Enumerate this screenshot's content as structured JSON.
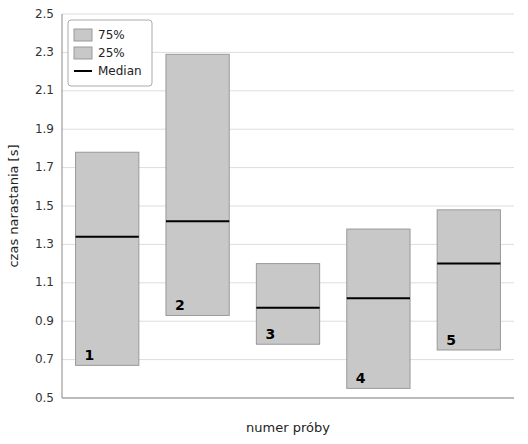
{
  "chart_data": {
    "type": "range_bar",
    "categories": [
      "1",
      "2",
      "3",
      "4",
      "5"
    ],
    "series": [
      {
        "name": "75%",
        "color": "#c8c8c8",
        "values": [
          1.78,
          2.29,
          1.2,
          1.38,
          1.48
        ]
      },
      {
        "name": "25%",
        "color": "#c8c8c8",
        "values": [
          0.67,
          0.93,
          0.78,
          0.55,
          0.75
        ]
      },
      {
        "name": "Median",
        "color": "#000000",
        "values": [
          1.34,
          1.42,
          0.97,
          1.02,
          1.2
        ]
      }
    ],
    "xlabel": "numer próby",
    "ylabel": "czas narastania [s]",
    "ylim": [
      0.5,
      2.5
    ],
    "yticks": [
      0.5,
      0.7,
      0.9,
      1.1,
      1.3,
      1.5,
      1.7,
      1.9,
      2.1,
      2.3,
      2.5
    ],
    "grid": true,
    "legend": "upper left",
    "tick_labels": "y"
  }
}
